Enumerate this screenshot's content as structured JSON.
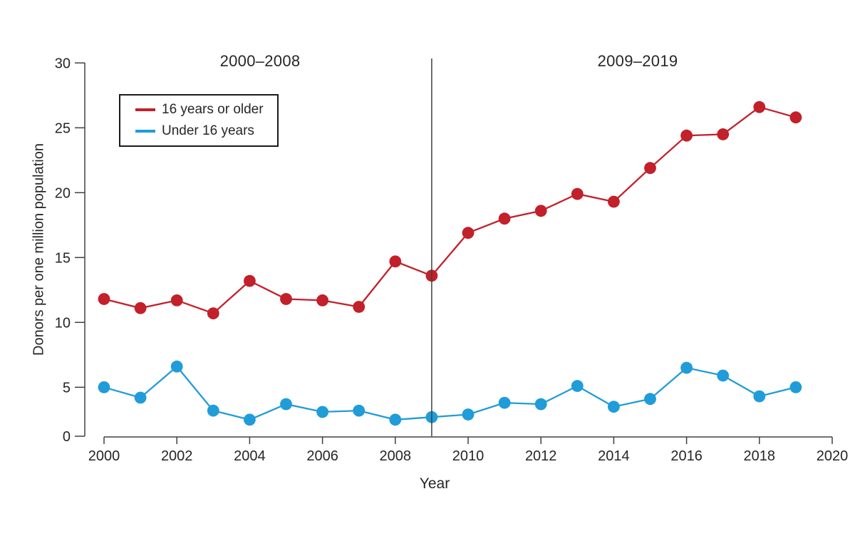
{
  "figure": {
    "period_label_left": "2000–2008",
    "period_label_right": "2009–2019",
    "y_axis_title": "Donors per one million population",
    "x_axis_title": "Year"
  },
  "legend": {
    "items": [
      {
        "label": "16 years or older",
        "color": "#c2202a"
      },
      {
        "label": "Under 16 years",
        "color": "#209cd8"
      }
    ]
  },
  "colors": {
    "red_series": "#c2202a",
    "blue_series": "#209cd8",
    "axis": "#404040",
    "divider": "#3f3f3f",
    "text": "#262626"
  },
  "chart_data": {
    "type": "line",
    "title": "",
    "xlabel": "Year",
    "ylabel": "Donors per one million population",
    "x": [
      2000,
      2001,
      2002,
      2003,
      2004,
      2005,
      2006,
      2007,
      2008,
      2009,
      2010,
      2011,
      2012,
      2013,
      2014,
      2015,
      2016,
      2017,
      2018,
      2019
    ],
    "series": [
      {
        "name": "16 years or older",
        "color": "#c2202a",
        "values": [
          11.8,
          11.1,
          11.7,
          10.7,
          13.2,
          11.8,
          11.7,
          11.2,
          14.7,
          13.6,
          16.9,
          18.0,
          18.6,
          19.9,
          19.3,
          21.9,
          24.4,
          24.5,
          26.6,
          25.8
        ]
      },
      {
        "name": "Under 16 years",
        "color": "#209cd8",
        "values": [
          5.0,
          4.2,
          6.6,
          3.2,
          2.5,
          3.7,
          3.1,
          3.2,
          2.5,
          2.7,
          2.9,
          3.8,
          3.7,
          5.1,
          3.5,
          4.1,
          6.5,
          5.9,
          4.3,
          5.0
        ]
      }
    ],
    "ylim": [
      0,
      30
    ],
    "xlim": [
      2000,
      2020
    ],
    "y_ticks": [
      0,
      5,
      10,
      15,
      20,
      25,
      30
    ],
    "x_ticks": [
      2000,
      2002,
      2004,
      2006,
      2008,
      2010,
      2012,
      2014,
      2016,
      2018,
      2020
    ],
    "grid": false,
    "legend_position": "upper left",
    "divider_x": 2009,
    "annotations": [
      "2000–2008",
      "2009–2019"
    ]
  }
}
